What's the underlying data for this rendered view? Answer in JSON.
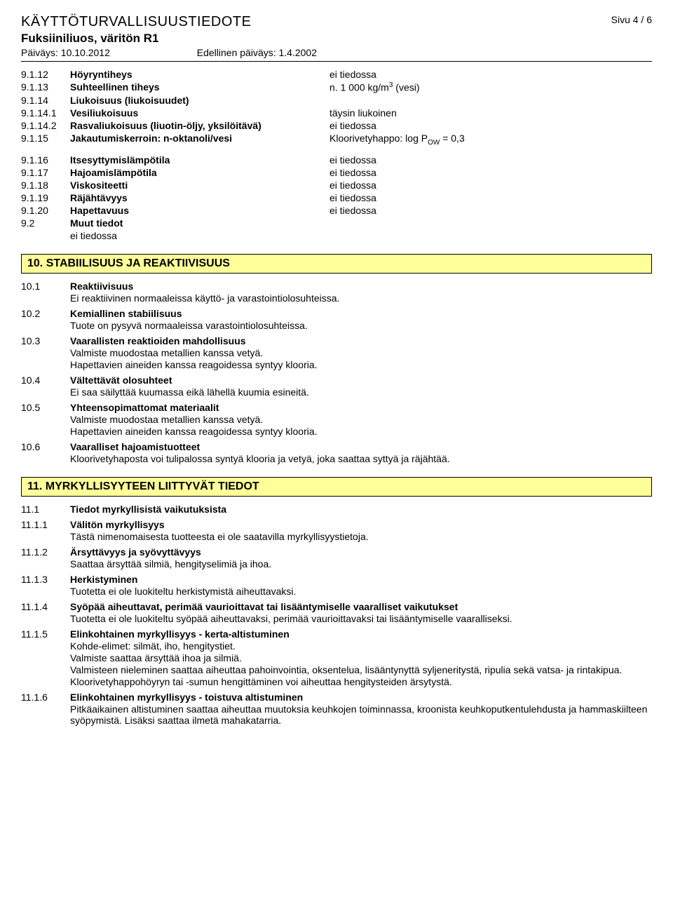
{
  "header": {
    "title": "KÄYTTÖTURVALLISUUSTIEDOTE",
    "page": "Sivu 4 / 6",
    "product": "Fuksiiniliuos, väritön R1",
    "date": "Päiväys: 10.10.2012",
    "prev_date": "Edellinen päiväys: 1.4.2002"
  },
  "props": [
    {
      "num": "9.1.12",
      "label": "Höyryntiheys",
      "val": "ei tiedossa"
    },
    {
      "num": "9.1.13",
      "label": "Suhteellinen tiheys",
      "val_html": "n. 1 000 kg/m<sup>3</sup> (vesi)"
    },
    {
      "num": "9.1.14",
      "label": "Liukoisuus (liukoisuudet)",
      "val": ""
    },
    {
      "num": "9.1.14.1",
      "label": "Vesiliukoisuus",
      "val": "täysin liukoinen"
    },
    {
      "num": "9.1.14.2",
      "label": "Rasvaliukoisuus (liuotin-öljy, yksilöitävä)",
      "val": "ei tiedossa"
    },
    {
      "num": "9.1.15",
      "label": "Jakautumiskerroin: n-oktanoli/vesi",
      "val_html": "Kloorivetyhappo: log P<sub>OW</sub> = 0,3"
    },
    {
      "num": "9.1.16",
      "label": "Itsesyttymislämpötila",
      "val": "ei tiedossa"
    },
    {
      "num": "9.1.17",
      "label": "Hajoamislämpötila",
      "val": "ei tiedossa"
    },
    {
      "num": "9.1.18",
      "label": "Viskositeetti",
      "val": "ei tiedossa"
    },
    {
      "num": "9.1.19",
      "label": "Räjähtävyys",
      "val": "ei tiedossa"
    },
    {
      "num": "9.1.20",
      "label": "Hapettavuus",
      "val": "ei tiedossa"
    },
    {
      "num": "9.2",
      "label": "Muut tiedot",
      "val": "",
      "sub": "ei tiedossa"
    }
  ],
  "sec10": {
    "title": "10. STABIILISUUS JA REAKTIIVISUUS",
    "items": [
      {
        "num": "10.1",
        "title": "Reaktiivisuus",
        "text": "Ei reaktiivinen normaaleissa käyttö- ja varastointiolosuhteissa."
      },
      {
        "num": "10.2",
        "title": "Kemiallinen stabiilisuus",
        "text": "Tuote on pysyvä normaaleissa varastointiolosuhteissa."
      },
      {
        "num": "10.3",
        "title": "Vaarallisten reaktioiden mahdollisuus",
        "text": "Valmiste muodostaa metallien kanssa vetyä.\nHapettavien aineiden kanssa reagoidessa syntyy klooria."
      },
      {
        "num": "10.4",
        "title": "Vältettävät olosuhteet",
        "text": "Ei saa säilyttää kuumassa eikä lähellä kuumia esineitä."
      },
      {
        "num": "10.5",
        "title": "Yhteensopimattomat materiaalit",
        "text": "Valmiste muodostaa metallien kanssa vetyä.\nHapettavien aineiden kanssa reagoidessa syntyy klooria."
      },
      {
        "num": "10.6",
        "title": "Vaaralliset hajoamistuotteet",
        "text": "Kloorivetyhaposta voi tulipalossa syntyä klooria ja vetyä, joka saattaa syttyä ja räjähtää."
      }
    ]
  },
  "sec11": {
    "title": "11. MYRKYLLISYYTEEN LIITTYVÄT TIEDOT",
    "items": [
      {
        "num": "11.1",
        "title": "Tiedot myrkyllisistä vaikutuksista",
        "text": ""
      },
      {
        "num": "11.1.1",
        "title": "Välitön myrkyllisyys",
        "text": "Tästä nimenomaisesta tuotteesta ei ole saatavilla myrkyllisyystietoja."
      },
      {
        "num": "11.1.2",
        "title": "Ärsyttävyys ja syövyttävyys",
        "text": "Saattaa ärsyttää silmiä, hengityselimiä ja ihoa."
      },
      {
        "num": "11.1.3",
        "title": "Herkistyminen",
        "text": "Tuotetta ei ole luokiteltu herkistymistä aiheuttavaksi."
      },
      {
        "num": "11.1.4",
        "title": "Syöpää aiheuttavat, perimää vaurioittavat tai lisääntymiselle vaaralliset vaikutukset",
        "text": "Tuotetta ei ole luokiteltu syöpää aiheuttavaksi, perimää vaurioittavaksi tai lisääntymiselle vaaralliseksi."
      },
      {
        "num": "11.1.5",
        "title": "Elinkohtainen myrkyllisyys - kerta-altistuminen",
        "text": "Kohde-elimet: silmät, iho, hengitystiet.\nValmiste saattaa ärsyttää ihoa ja silmiä.\nValmisteen nieleminen saattaa aiheuttaa pahoinvointia, oksentelua, lisääntynyttä syljeneritystä, ripulia sekä vatsa- ja rintakipua.\nKloorivetyhappohöyryn tai -sumun hengittäminen voi aiheuttaa hengitysteiden ärsytystä."
      },
      {
        "num": "11.1.6",
        "title": "Elinkohtainen myrkyllisyys - toistuva altistuminen",
        "text": "Pitkäaikainen altistuminen saattaa aiheuttaa muutoksia keuhkojen toiminnassa, kroonista keuhkoputkentulehdusta ja hammaskiilteen syöpymistä. Lisäksi saattaa ilmetä mahakatarria."
      }
    ]
  }
}
